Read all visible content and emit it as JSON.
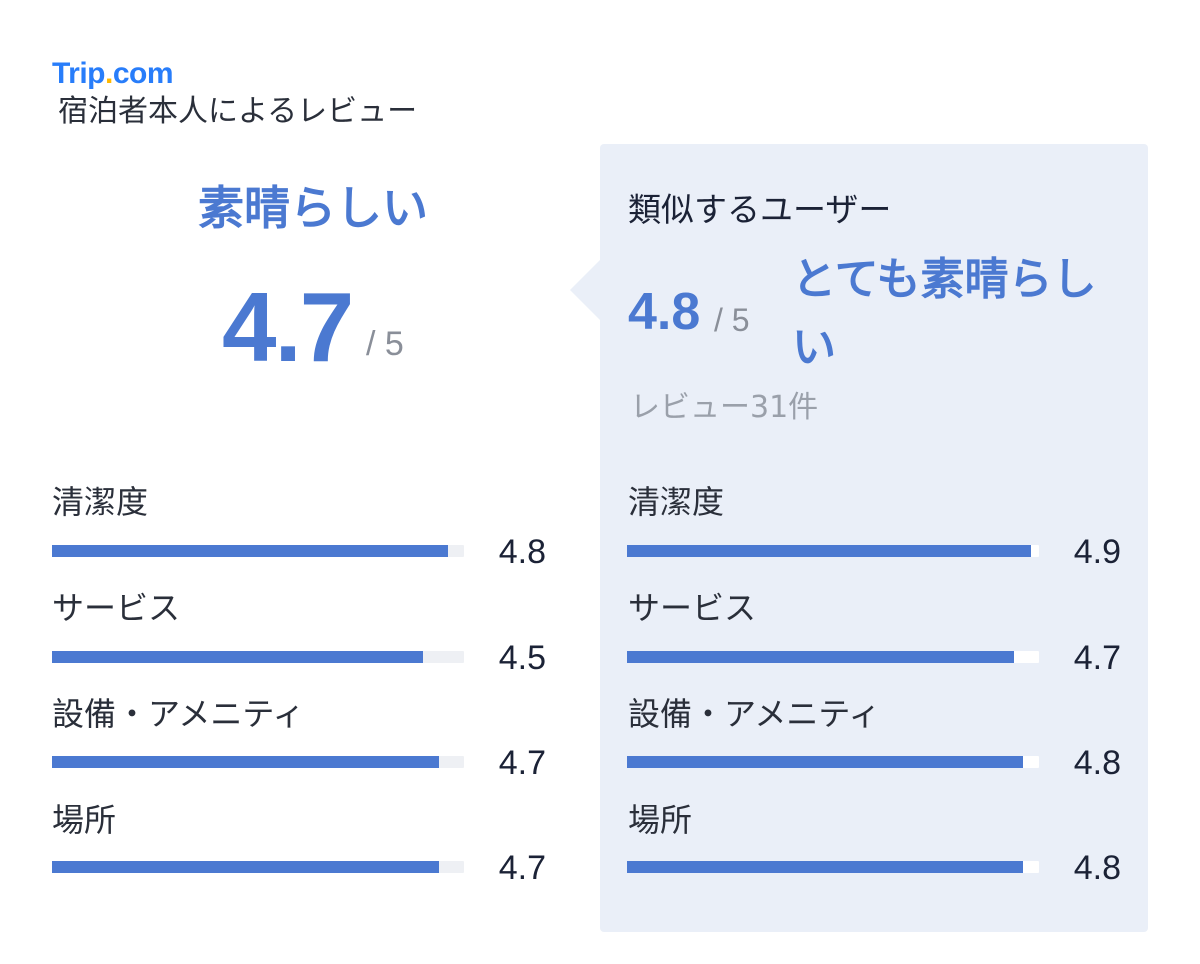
{
  "brand": {
    "name_main": "Trip",
    "name_dot": ".",
    "name_tld": "com",
    "accent": "#287dfa",
    "dot_color": "#ffb800"
  },
  "subtitle": "宿泊者本人によるレビュー",
  "own": {
    "label": "素晴らしい",
    "score": "4.7",
    "max": "/ 5",
    "categories": [
      {
        "name": "清潔度",
        "value": "4.8",
        "fill": 0.96
      },
      {
        "name": "サービス",
        "value": "4.5",
        "fill": 0.9
      },
      {
        "name": "設備・アメニティ",
        "value": "4.7",
        "fill": 0.94
      },
      {
        "name": "場所",
        "value": "4.7",
        "fill": 0.94
      }
    ]
  },
  "similar": {
    "title": "類似するユーザー",
    "score": "4.8",
    "max": "/ 5",
    "label": "とても素晴らしい",
    "review_count": "レビュー31件",
    "categories": [
      {
        "name": "清潔度",
        "value": "4.9",
        "fill": 0.98
      },
      {
        "name": "サービス",
        "value": "4.7",
        "fill": 0.94
      },
      {
        "name": "設備・アメニティ",
        "value": "4.8",
        "fill": 0.96
      },
      {
        "name": "場所",
        "value": "4.8",
        "fill": 0.96
      }
    ]
  },
  "colors": {
    "primary": "#4b79d1",
    "panel_bg": "#eaeff8",
    "track": "#eef0f4"
  }
}
